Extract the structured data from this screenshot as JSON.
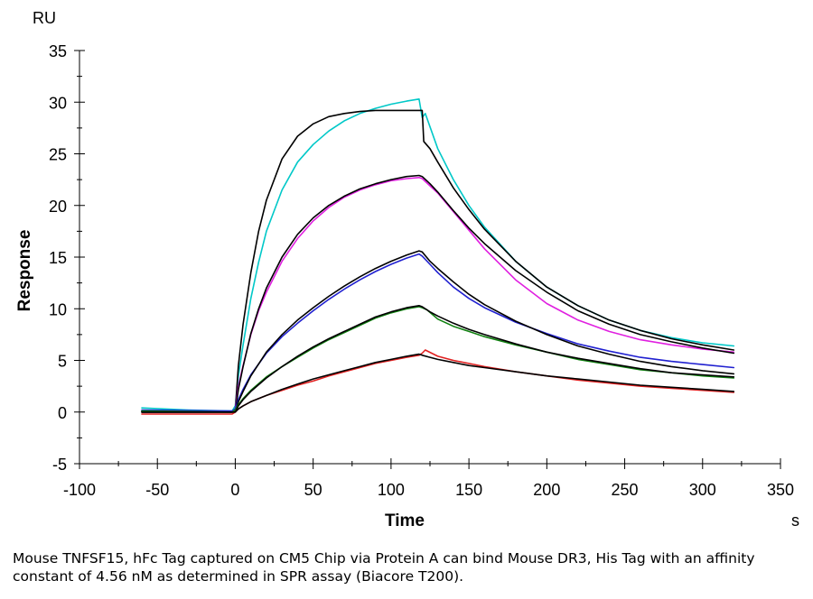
{
  "chart_data": {
    "type": "line",
    "title": "",
    "xlabel": "Time",
    "ylabel": "Response",
    "y_unit": "RU",
    "x_unit": "s",
    "xlim": [
      -100,
      350
    ],
    "ylim": [
      -5,
      35
    ],
    "x_ticks": [
      -100,
      -50,
      0,
      50,
      100,
      150,
      200,
      250,
      300,
      350
    ],
    "y_ticks": [
      -5,
      0,
      5,
      10,
      15,
      20,
      25,
      30,
      35
    ],
    "grid": false,
    "legend": "none",
    "series": [
      {
        "color": "#00c8c8",
        "role": "data",
        "x": [
          -60,
          -30,
          -2,
          0,
          2,
          5,
          10,
          15,
          20,
          30,
          40,
          50,
          60,
          70,
          80,
          90,
          100,
          110,
          118,
          120,
          122,
          130,
          140,
          150,
          160,
          180,
          200,
          220,
          240,
          260,
          280,
          300,
          320
        ],
        "y": [
          0.4,
          0.2,
          0.1,
          0.6,
          3.5,
          6.5,
          11.0,
          14.5,
          17.5,
          21.5,
          24.2,
          25.9,
          27.2,
          28.2,
          28.9,
          29.4,
          29.8,
          30.1,
          30.3,
          28.5,
          28.9,
          25.5,
          22.5,
          20.0,
          17.9,
          14.6,
          12.1,
          10.3,
          8.9,
          7.9,
          7.2,
          6.7,
          6.4
        ]
      },
      {
        "color": "#000000",
        "role": "fit",
        "x": [
          -60,
          -2,
          0,
          2,
          5,
          10,
          15,
          20,
          30,
          40,
          50,
          60,
          70,
          80,
          90,
          100,
          110,
          120,
          121,
          125,
          130,
          140,
          150,
          160,
          180,
          200,
          220,
          240,
          260,
          280,
          300,
          320
        ],
        "y": [
          0,
          0,
          0.1,
          4.5,
          8.5,
          13.5,
          17.5,
          20.5,
          24.5,
          26.7,
          27.9,
          28.6,
          28.9,
          29.1,
          29.2,
          29.2,
          29.2,
          29.2,
          26.2,
          25.5,
          24.2,
          21.7,
          19.6,
          17.7,
          14.6,
          12.1,
          10.3,
          8.9,
          7.9,
          7.1,
          6.5,
          6.0
        ]
      },
      {
        "color": "#e020e0",
        "role": "data",
        "x": [
          -60,
          -2,
          0,
          2,
          5,
          10,
          15,
          20,
          30,
          40,
          50,
          60,
          70,
          80,
          90,
          100,
          110,
          118,
          120,
          125,
          130,
          140,
          150,
          160,
          180,
          200,
          220,
          240,
          260,
          280,
          300,
          320
        ],
        "y": [
          0.1,
          0.0,
          0.3,
          2.5,
          4.5,
          7.5,
          9.8,
          11.6,
          14.6,
          16.8,
          18.5,
          19.8,
          20.8,
          21.5,
          22.0,
          22.4,
          22.6,
          22.7,
          22.6,
          21.9,
          21.2,
          19.4,
          17.6,
          15.8,
          12.8,
          10.5,
          8.9,
          7.8,
          7.0,
          6.5,
          6.1,
          5.8
        ]
      },
      {
        "color": "#000000",
        "role": "fit",
        "x": [
          -60,
          -2,
          0,
          2,
          5,
          10,
          15,
          20,
          30,
          40,
          50,
          60,
          70,
          80,
          90,
          100,
          110,
          118,
          120,
          125,
          130,
          140,
          150,
          160,
          180,
          200,
          220,
          240,
          260,
          280,
          300,
          320
        ],
        "y": [
          0,
          0,
          0,
          2.2,
          4.4,
          7.6,
          10.0,
          12.0,
          15.0,
          17.2,
          18.8,
          20.0,
          20.9,
          21.6,
          22.1,
          22.5,
          22.8,
          22.9,
          22.8,
          22.1,
          21.3,
          19.5,
          17.8,
          16.3,
          13.7,
          11.6,
          9.8,
          8.5,
          7.5,
          6.8,
          6.2,
          5.7
        ]
      },
      {
        "color": "#2020d0",
        "role": "data",
        "x": [
          -60,
          -2,
          0,
          2,
          5,
          10,
          20,
          30,
          40,
          50,
          60,
          70,
          80,
          90,
          100,
          110,
          118,
          120,
          125,
          130,
          140,
          150,
          160,
          180,
          200,
          220,
          240,
          260,
          280,
          300,
          320
        ],
        "y": [
          0.2,
          0.1,
          0.3,
          1.2,
          2.2,
          3.6,
          5.7,
          7.3,
          8.6,
          9.8,
          10.9,
          11.9,
          12.8,
          13.6,
          14.3,
          14.9,
          15.3,
          15.1,
          14.3,
          13.5,
          12.1,
          11.0,
          10.1,
          8.7,
          7.6,
          6.6,
          5.9,
          5.3,
          4.9,
          4.6,
          4.3
        ]
      },
      {
        "color": "#000000",
        "role": "fit",
        "x": [
          -60,
          -2,
          0,
          2,
          5,
          10,
          20,
          30,
          40,
          50,
          60,
          70,
          80,
          90,
          100,
          110,
          118,
          120,
          125,
          130,
          140,
          150,
          160,
          180,
          200,
          220,
          240,
          260,
          280,
          300,
          320
        ],
        "y": [
          0,
          0,
          0,
          1.0,
          2.0,
          3.5,
          5.8,
          7.5,
          8.9,
          10.1,
          11.2,
          12.2,
          13.1,
          13.9,
          14.6,
          15.2,
          15.6,
          15.5,
          14.6,
          13.9,
          12.6,
          11.4,
          10.4,
          8.8,
          7.5,
          6.4,
          5.6,
          4.9,
          4.4,
          4.0,
          3.7
        ]
      },
      {
        "color": "#108010",
        "role": "data",
        "x": [
          -60,
          -2,
          0,
          2,
          5,
          10,
          20,
          30,
          40,
          50,
          60,
          70,
          80,
          90,
          100,
          110,
          118,
          120,
          123,
          130,
          140,
          150,
          160,
          180,
          200,
          220,
          240,
          260,
          280,
          300,
          320
        ],
        "y": [
          0.1,
          0.0,
          0.2,
          0.7,
          1.3,
          2.1,
          3.4,
          4.4,
          5.3,
          6.2,
          7.0,
          7.7,
          8.4,
          9.1,
          9.6,
          10.0,
          10.2,
          10.1,
          9.9,
          9.0,
          8.3,
          7.8,
          7.3,
          6.5,
          5.8,
          5.1,
          4.6,
          4.1,
          3.8,
          3.5,
          3.3
        ]
      },
      {
        "color": "#000000",
        "role": "fit",
        "x": [
          -60,
          -2,
          0,
          2,
          5,
          10,
          20,
          30,
          40,
          50,
          60,
          70,
          80,
          90,
          100,
          110,
          118,
          120,
          125,
          130,
          140,
          150,
          160,
          180,
          200,
          220,
          240,
          260,
          280,
          300,
          320
        ],
        "y": [
          0,
          0,
          0,
          0.6,
          1.2,
          2.0,
          3.3,
          4.4,
          5.4,
          6.3,
          7.1,
          7.8,
          8.5,
          9.2,
          9.7,
          10.1,
          10.3,
          10.2,
          9.7,
          9.3,
          8.6,
          8.0,
          7.5,
          6.6,
          5.8,
          5.2,
          4.7,
          4.2,
          3.8,
          3.6,
          3.4
        ]
      },
      {
        "color": "#e02020",
        "role": "data",
        "x": [
          -60,
          -2,
          0,
          2,
          5,
          10,
          20,
          30,
          40,
          50,
          60,
          70,
          80,
          90,
          100,
          110,
          118,
          120,
          122,
          130,
          140,
          150,
          160,
          180,
          200,
          220,
          240,
          260,
          280,
          300,
          320
        ],
        "y": [
          -0.2,
          -0.2,
          0.0,
          0.3,
          0.6,
          1.0,
          1.6,
          2.1,
          2.6,
          3.0,
          3.5,
          3.9,
          4.3,
          4.7,
          5.0,
          5.3,
          5.5,
          5.7,
          6.0,
          5.4,
          5.0,
          4.7,
          4.4,
          3.9,
          3.5,
          3.1,
          2.8,
          2.5,
          2.3,
          2.1,
          1.9
        ]
      },
      {
        "color": "#000000",
        "role": "fit",
        "x": [
          -60,
          -2,
          0,
          2,
          5,
          10,
          20,
          30,
          40,
          50,
          60,
          70,
          80,
          90,
          100,
          110,
          118,
          120,
          125,
          130,
          140,
          150,
          160,
          180,
          200,
          220,
          240,
          260,
          280,
          300,
          320
        ],
        "y": [
          0,
          0,
          0,
          0.3,
          0.6,
          1.0,
          1.6,
          2.2,
          2.7,
          3.2,
          3.6,
          4.0,
          4.4,
          4.8,
          5.1,
          5.4,
          5.6,
          5.5,
          5.3,
          5.1,
          4.8,
          4.5,
          4.3,
          3.9,
          3.5,
          3.2,
          2.9,
          2.6,
          2.4,
          2.2,
          2.0
        ]
      }
    ]
  },
  "caption": "Mouse TNFSF15, hFc Tag captured on CM5 Chip via Protein A can bind Mouse DR3, His Tag with an affinity constant of 4.56 nM as determined in SPR assay (Biacore T200)."
}
